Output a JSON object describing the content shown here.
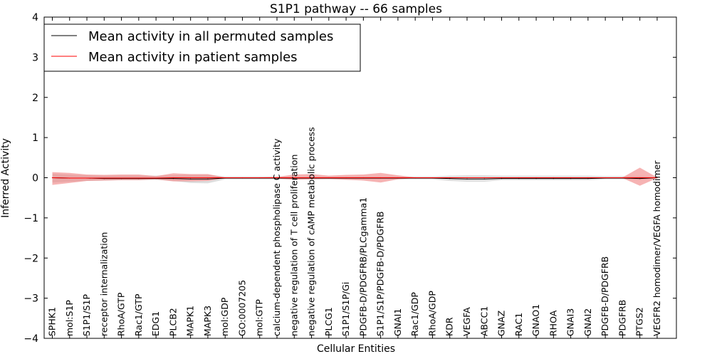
{
  "chart_data": {
    "type": "line",
    "title": "S1P1 pathway -- 66 samples",
    "xlabel": "Cellular Entities",
    "ylabel": "Inferred Activity",
    "ylim": [
      -4,
      4
    ],
    "yticks": [
      -4,
      -3,
      -2,
      -1,
      0,
      1,
      2,
      3,
      4
    ],
    "ytick_labels": [
      "−4",
      "−3",
      "−2",
      "−1",
      "0",
      "1",
      "2",
      "3",
      "4"
    ],
    "legend_position": "top-left",
    "categories": [
      "SPHK1",
      "mol:S1P",
      "S1P1/S1P",
      "receptor internalization",
      "RhoA/GTP",
      "Rac1/GTP",
      "EDG1",
      "PLCB2",
      "MAPK1",
      "MAPK3",
      "mol:GDP",
      "GO:0007205",
      "mol:GTP",
      "calcium-dependent phospholipase C activity",
      "negative regulation of T cell proliferation",
      "negative regulation of cAMP metabolic process",
      "PLCG1",
      "S1P1/S1P/Gi",
      "PDGFB-D/PDGFRB/PLCgamma1",
      "S1P1/S1P/PDGFB-D/PDGFRB",
      "GNAI1",
      "Rac1/GDP",
      "RhoA/GDP",
      "KDR",
      "VEGFA",
      "ABCC1",
      "GNAZ",
      "RAC1",
      "GNAO1",
      "RHOA",
      "GNAI3",
      "GNAI2",
      "PDGFB-D/PDGFRB",
      "PDGFRB",
      "PTGS2",
      "VEGFR2 homodimer/VEGFA homodimer"
    ],
    "series": [
      {
        "name": "Mean activity in all permuted samples",
        "color": "#000000",
        "band_color": "#bdbdbd",
        "values": [
          0.0,
          -0.01,
          -0.01,
          -0.02,
          -0.02,
          -0.02,
          -0.02,
          -0.02,
          -0.03,
          -0.03,
          -0.01,
          -0.01,
          -0.01,
          -0.01,
          -0.01,
          -0.01,
          -0.01,
          -0.01,
          -0.01,
          -0.01,
          -0.01,
          -0.01,
          -0.01,
          -0.02,
          -0.03,
          -0.03,
          -0.02,
          -0.02,
          -0.02,
          -0.02,
          -0.02,
          -0.02,
          -0.01,
          -0.01,
          -0.02,
          0.0
        ],
        "lower": [
          -0.12,
          -0.1,
          -0.08,
          -0.07,
          -0.06,
          -0.06,
          -0.05,
          -0.08,
          -0.13,
          -0.14,
          -0.04,
          -0.04,
          -0.04,
          -0.04,
          -0.04,
          -0.04,
          -0.04,
          -0.04,
          -0.04,
          -0.04,
          -0.04,
          -0.04,
          -0.04,
          -0.08,
          -0.1,
          -0.1,
          -0.06,
          -0.06,
          -0.06,
          -0.06,
          -0.06,
          -0.06,
          -0.04,
          -0.04,
          -0.05,
          -0.02
        ],
        "upper": [
          0.1,
          0.08,
          0.06,
          0.05,
          0.05,
          0.05,
          0.05,
          0.06,
          0.07,
          0.07,
          0.03,
          0.03,
          0.03,
          0.03,
          0.03,
          0.03,
          0.03,
          0.03,
          0.03,
          0.03,
          0.03,
          0.03,
          0.03,
          0.05,
          0.06,
          0.06,
          0.05,
          0.05,
          0.05,
          0.05,
          0.05,
          0.05,
          0.04,
          0.04,
          0.04,
          0.02
        ]
      },
      {
        "name": "Mean activity in patient samples",
        "color": "#ff0000",
        "band_color": "#f08080",
        "values": [
          0.0,
          -0.01,
          -0.01,
          -0.01,
          -0.01,
          -0.01,
          -0.01,
          0.0,
          0.0,
          0.0,
          0.0,
          0.0,
          0.0,
          0.0,
          0.0,
          0.0,
          0.0,
          0.0,
          0.0,
          0.0,
          0.0,
          0.0,
          0.0,
          0.0,
          0.0,
          0.0,
          0.0,
          0.0,
          0.0,
          0.0,
          0.0,
          0.0,
          0.0,
          0.0,
          0.0,
          0.0
        ],
        "lower": [
          -0.18,
          -0.13,
          -0.08,
          -0.07,
          -0.06,
          -0.06,
          -0.04,
          -0.09,
          -0.09,
          -0.08,
          -0.01,
          -0.01,
          -0.01,
          -0.02,
          -0.05,
          -0.04,
          -0.03,
          -0.05,
          -0.07,
          -0.12,
          -0.04,
          -0.01,
          -0.01,
          -0.01,
          -0.01,
          -0.01,
          -0.01,
          -0.01,
          -0.01,
          -0.01,
          -0.01,
          -0.01,
          -0.01,
          -0.01,
          -0.2,
          -0.01
        ],
        "upper": [
          0.14,
          0.12,
          0.08,
          0.07,
          0.08,
          0.08,
          0.04,
          0.11,
          0.09,
          0.09,
          0.01,
          0.01,
          0.01,
          0.02,
          0.08,
          0.09,
          0.05,
          0.07,
          0.08,
          0.12,
          0.06,
          0.01,
          0.01,
          0.01,
          0.01,
          0.01,
          0.01,
          0.01,
          0.01,
          0.01,
          0.01,
          0.01,
          0.01,
          0.01,
          0.25,
          0.01
        ]
      }
    ]
  }
}
